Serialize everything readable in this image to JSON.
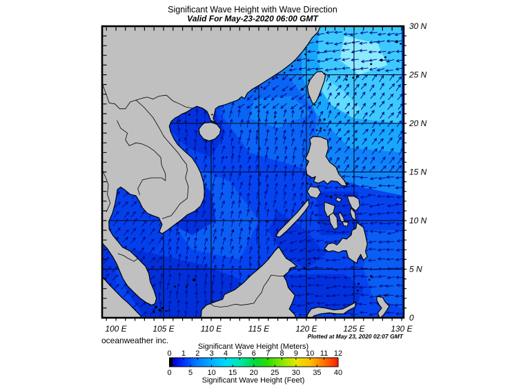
{
  "title": "Significant Wave Height with Wave Direction",
  "subtitle": "Valid For May-23-2020 06:00 GMT",
  "credit": "oceanweather inc.",
  "plotted_at": "Plotted at May 23, 2020 02:07 GMT",
  "axes": {
    "lon_labels": [
      "100 E",
      "105 E",
      "110 E",
      "115 E",
      "120 E",
      "125 E",
      "130 E"
    ],
    "lon_values": [
      100,
      105,
      110,
      115,
      120,
      125,
      130
    ],
    "lat_labels": [
      "30 N",
      "25 N",
      "20 N",
      "15 N",
      "10 N",
      "5 N",
      "0"
    ],
    "lat_values": [
      30,
      25,
      20,
      15,
      10,
      5,
      0
    ],
    "lon_range": [
      98.55,
      130.3
    ],
    "lat_range": [
      0,
      30
    ]
  },
  "colorbar": {
    "title_meters": "Significant Wave Height (Meters)",
    "title_feet": "Significant Wave Height (Feet)",
    "meter_ticks": [
      "0",
      "1",
      "2",
      "3",
      "4",
      "5",
      "6",
      "7",
      "8",
      "9",
      "10",
      "11",
      "12"
    ],
    "feet_ticks": [
      "0",
      "5",
      "10",
      "15",
      "20",
      "25",
      "30",
      "35",
      "40"
    ],
    "stops": [
      [
        0,
        "#000000"
      ],
      [
        0.016,
        "#000000"
      ],
      [
        0.022,
        "#0000cf"
      ],
      [
        0.083,
        "#002fff"
      ],
      [
        0.167,
        "#007fff"
      ],
      [
        0.25,
        "#00aeff"
      ],
      [
        0.333,
        "#00dafa"
      ],
      [
        0.417,
        "#00e6ae"
      ],
      [
        0.5,
        "#00d845"
      ],
      [
        0.583,
        "#2edc00"
      ],
      [
        0.667,
        "#86e800"
      ],
      [
        0.75,
        "#e6e600"
      ],
      [
        0.833,
        "#ffbe00"
      ],
      [
        0.917,
        "#ff7300"
      ],
      [
        1,
        "#ff1a00"
      ]
    ]
  },
  "palette": {
    "sea_base": "#0545ef",
    "land": "#c0c0c0",
    "arrow": "#000d8f",
    "grid": "#000000",
    "dark": "#0232dd",
    "dark2": "#0230d8",
    "gulf": "#0340ea",
    "andaman": "#0335e2",
    "mid": "#0a64f4",
    "mid2": "#0a5ef3",
    "light": "#0f82f8",
    "light2": "#0f86f8",
    "cyan1": "#18a8fb",
    "cyan2": "#3ec9fd",
    "cyan3": "#62dcff",
    "cyan4": "#8ceaff"
  },
  "chart_data": {
    "type": "heatmap",
    "title": "Significant Wave Height with Wave Direction",
    "region": "South China Sea / Western Pacific, 98.5E-130E, 0N-30N",
    "units": [
      "meters",
      "feet"
    ],
    "scale_range_m": [
      0,
      12
    ],
    "scale_range_ft": [
      0,
      40
    ],
    "field_regions_read_from_colors": [
      {
        "area": "NE of Taiwan / Ryukyu (122-128E, 24-29N)",
        "hs_m": "3.5-4.5",
        "direction": "westward / northeastward mix"
      },
      {
        "area": "Luzon Strait and N Philippine Sea (121-130E, 15-25N)",
        "hs_m": "2.5-3.5",
        "direction": "toward NE"
      },
      {
        "area": "Central South China Sea (111-120E, 14-22N)",
        "hs_m": "1.5-2.5",
        "direction": "toward N-NE"
      },
      {
        "area": "East of Philippines (122-130E, 4-14N)",
        "hs_m": "1.5",
        "direction": "toward W"
      },
      {
        "area": "Gulf of Thailand",
        "hs_m": "1-1.5",
        "direction": "toward NE"
      },
      {
        "area": "Gulf of Tonkin / Vietnam coast",
        "hs_m": "1",
        "direction": "toward N"
      },
      {
        "area": "Sulu and Celebes Seas",
        "hs_m": "1",
        "direction": "toward W-SW"
      }
    ]
  }
}
